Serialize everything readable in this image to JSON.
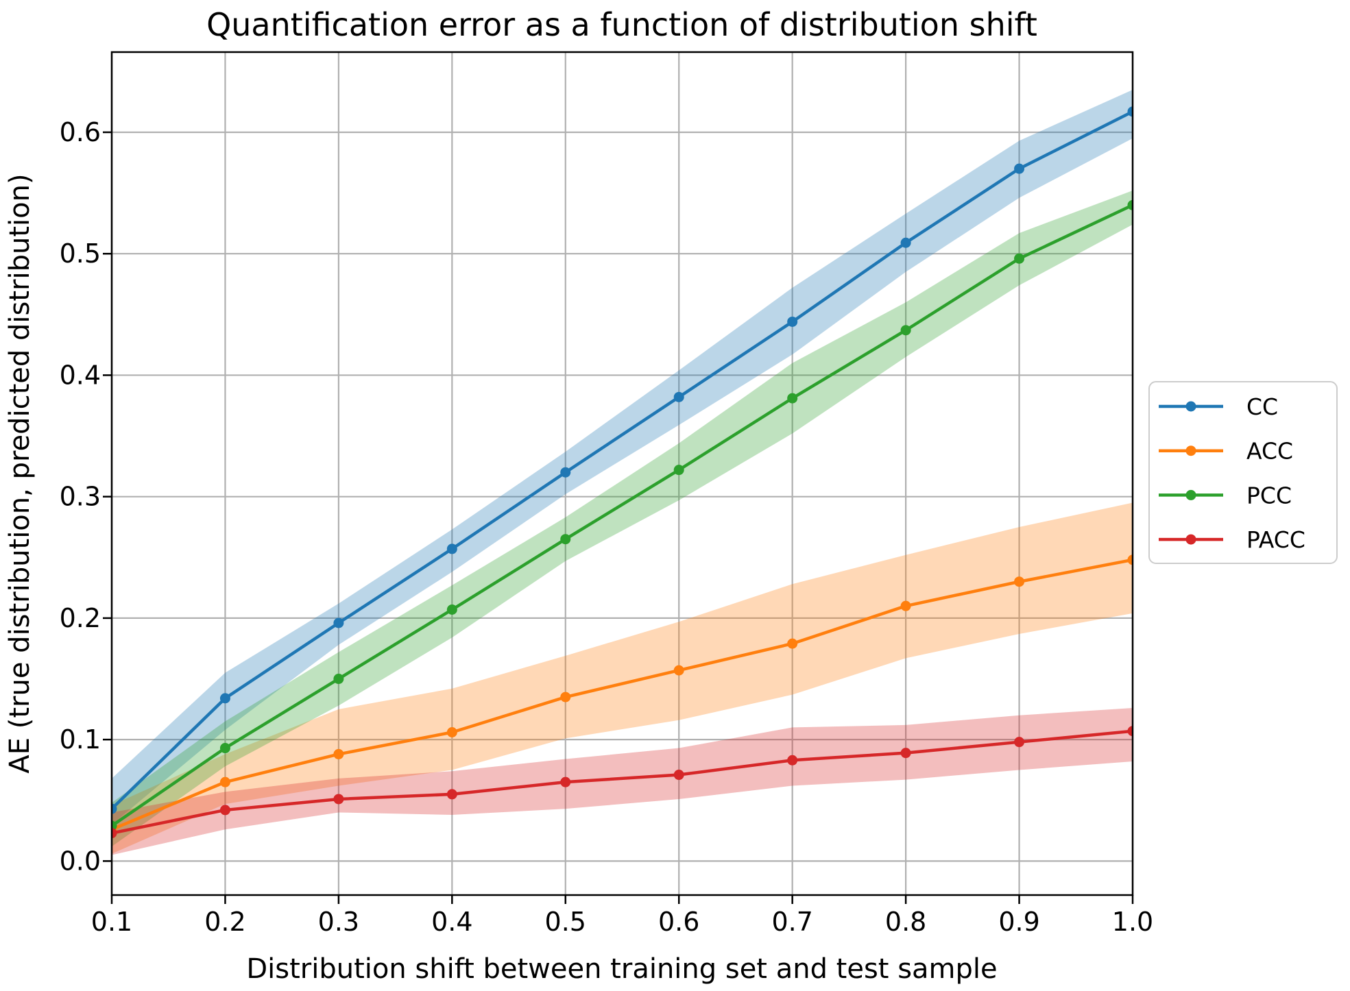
{
  "chart_data": {
    "type": "line",
    "title": "Quantification error as a function of distribution shift",
    "xlabel": "Distribution shift between training set and test sample",
    "ylabel": "AE (true distribution, predicted distribution)",
    "x": [
      0.1,
      0.2,
      0.3,
      0.4,
      0.5,
      0.6,
      0.7,
      0.8,
      0.9,
      1.0
    ],
    "xlim": [
      0.1,
      1.0
    ],
    "ylim": [
      -0.028,
      0.666
    ],
    "xtick_labels": [
      "0.1",
      "0.2",
      "0.3",
      "0.4",
      "0.5",
      "0.6",
      "0.7",
      "0.8",
      "0.9",
      "1.0"
    ],
    "ytick_values": [
      0.0,
      0.1,
      0.2,
      0.3,
      0.4,
      0.5,
      0.6
    ],
    "ytick_labels": [
      "0.0",
      "0.1",
      "0.2",
      "0.3",
      "0.4",
      "0.5",
      "0.6"
    ],
    "grid": true,
    "grid_color": "#b0b0b0",
    "spine_color": "#000000",
    "text_color": "#000000",
    "band_opacity": 0.3,
    "legend": {
      "position": "outside-right",
      "border_color": "#cccccc",
      "labels": [
        "CC",
        "ACC",
        "PCC",
        "PACC"
      ]
    },
    "series": [
      {
        "name": "CC",
        "color": "#1f77b4",
        "values": [
          0.043,
          0.134,
          0.196,
          0.257,
          0.32,
          0.382,
          0.444,
          0.509,
          0.57,
          0.617
        ],
        "band_lower": [
          0.03,
          0.108,
          0.178,
          0.238,
          0.302,
          0.359,
          0.417,
          0.485,
          0.546,
          0.595
        ],
        "band_upper": [
          0.068,
          0.155,
          0.212,
          0.273,
          0.337,
          0.404,
          0.472,
          0.533,
          0.593,
          0.635
        ]
      },
      {
        "name": "ACC",
        "color": "#ff7f0e",
        "values": [
          0.026,
          0.065,
          0.088,
          0.106,
          0.135,
          0.157,
          0.179,
          0.21,
          0.23,
          0.248
        ],
        "band_lower": [
          0.006,
          0.047,
          0.062,
          0.075,
          0.101,
          0.116,
          0.137,
          0.167,
          0.187,
          0.204
        ],
        "band_upper": [
          0.046,
          0.088,
          0.125,
          0.142,
          0.169,
          0.197,
          0.228,
          0.252,
          0.275,
          0.295
        ]
      },
      {
        "name": "PCC",
        "color": "#2ca02c",
        "values": [
          0.029,
          0.093,
          0.15,
          0.207,
          0.265,
          0.322,
          0.381,
          0.437,
          0.496,
          0.54
        ],
        "band_lower": [
          0.012,
          0.078,
          0.128,
          0.184,
          0.247,
          0.297,
          0.352,
          0.415,
          0.474,
          0.524
        ],
        "band_upper": [
          0.048,
          0.115,
          0.172,
          0.227,
          0.283,
          0.344,
          0.41,
          0.46,
          0.517,
          0.552
        ]
      },
      {
        "name": "PACC",
        "color": "#d62728",
        "values": [
          0.023,
          0.042,
          0.051,
          0.055,
          0.065,
          0.071,
          0.083,
          0.089,
          0.098,
          0.107
        ],
        "band_lower": [
          0.005,
          0.026,
          0.04,
          0.038,
          0.043,
          0.051,
          0.062,
          0.067,
          0.075,
          0.082
        ],
        "band_upper": [
          0.04,
          0.057,
          0.068,
          0.074,
          0.084,
          0.093,
          0.11,
          0.112,
          0.12,
          0.126
        ]
      }
    ]
  }
}
